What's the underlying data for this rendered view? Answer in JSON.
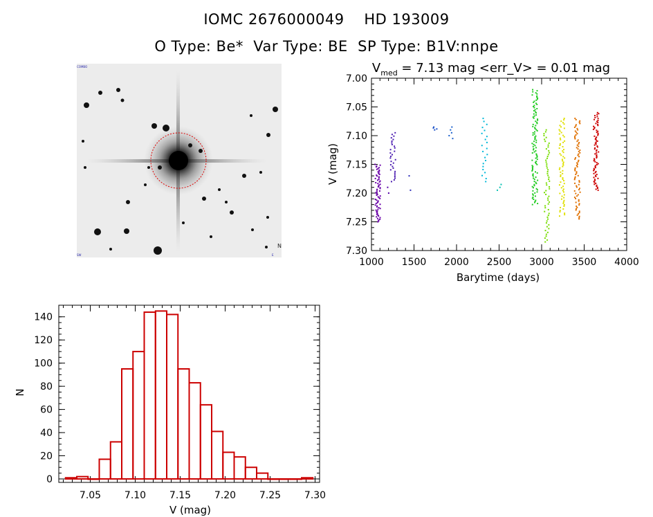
{
  "header": {
    "line1": "IOMC 2676000049    HD 193009",
    "line2": "O Type: Be*  Var Type: BE  SP Type: B1V:nnpe"
  },
  "colors": {
    "histogram": "#cc0000",
    "aperture": "#dd0000",
    "axes": "#000000"
  },
  "image_stamp": {
    "corner_labels": [
      "COMBO",
      "SW",
      "N",
      "E"
    ]
  },
  "chart_data": [
    {
      "type": "scatter",
      "title_prefix": "V",
      "title_sub": "med",
      "title_rest": " = 7.13 mag <err_V> = 0.01 mag",
      "xlabel": "Barytime (days)",
      "ylabel": "V (mag)",
      "xlim": [
        1000,
        4000
      ],
      "ylim": [
        7.3,
        7.0
      ],
      "y_inverted": true,
      "xticks": [
        1000,
        1500,
        2000,
        2500,
        3000,
        3500,
        4000
      ],
      "yticks": [
        "7.00",
        "7.05",
        "7.10",
        "7.15",
        "7.20",
        "7.25",
        "7.30"
      ],
      "groups": [
        {
          "x": 1075,
          "ymin": 7.15,
          "ymax": 7.25,
          "n": 70,
          "color": "#6a00a8"
        },
        {
          "x": 1190,
          "ymin": 7.19,
          "ymax": 7.2,
          "n": 2,
          "color": "#5500a8"
        },
        {
          "x": 1250,
          "ymin": 7.095,
          "ymax": 7.18,
          "n": 30,
          "color": "#4a1ab0"
        },
        {
          "x": 1475,
          "ymin": 7.17,
          "ymax": 7.195,
          "n": 2,
          "color": "#2a2ab8"
        },
        {
          "x": 1760,
          "ymin": 7.085,
          "ymax": 7.09,
          "n": 4,
          "color": "#1a50c8"
        },
        {
          "x": 1930,
          "ymin": 7.085,
          "ymax": 7.105,
          "n": 5,
          "color": "#1a60cc"
        },
        {
          "x": 2330,
          "ymin": 7.07,
          "ymax": 7.18,
          "n": 22,
          "color": "#00b8d8"
        },
        {
          "x": 2510,
          "ymin": 7.185,
          "ymax": 7.195,
          "n": 3,
          "color": "#00c0b0"
        },
        {
          "x": 2920,
          "ymin": 7.02,
          "ymax": 7.22,
          "n": 110,
          "color": "#22cc22"
        },
        {
          "x": 3060,
          "ymin": 7.09,
          "ymax": 7.285,
          "n": 60,
          "color": "#77dd00"
        },
        {
          "x": 3240,
          "ymin": 7.07,
          "ymax": 7.24,
          "n": 70,
          "color": "#e0e000"
        },
        {
          "x": 3420,
          "ymin": 7.07,
          "ymax": 7.245,
          "n": 80,
          "color": "#e07000"
        },
        {
          "x": 3640,
          "ymin": 7.06,
          "ymax": 7.195,
          "n": 80,
          "color": "#cc0000"
        }
      ]
    },
    {
      "type": "bar",
      "subtype": "histogram",
      "xlabel": "V (mag)",
      "ylabel": "N",
      "xlim": [
        7.015,
        7.305
      ],
      "ylim": [
        -3,
        150
      ],
      "xticks": [
        "7.05",
        "7.10",
        "7.15",
        "7.20",
        "7.25",
        "7.30"
      ],
      "yticks": [
        0,
        20,
        40,
        60,
        80,
        100,
        120,
        140
      ],
      "bin_width": 0.0125,
      "bin_starts": [
        7.0225,
        7.035,
        7.0475,
        7.06,
        7.0725,
        7.085,
        7.0975,
        7.11,
        7.1225,
        7.135,
        7.1475,
        7.16,
        7.1725,
        7.185,
        7.1975,
        7.21,
        7.2225,
        7.235,
        7.2475,
        7.26,
        7.2725,
        7.285
      ],
      "counts": [
        1,
        2,
        0,
        17,
        32,
        95,
        110,
        144,
        145,
        142,
        95,
        83,
        64,
        41,
        23,
        19,
        10,
        5,
        0,
        0,
        0,
        1
      ]
    }
  ]
}
